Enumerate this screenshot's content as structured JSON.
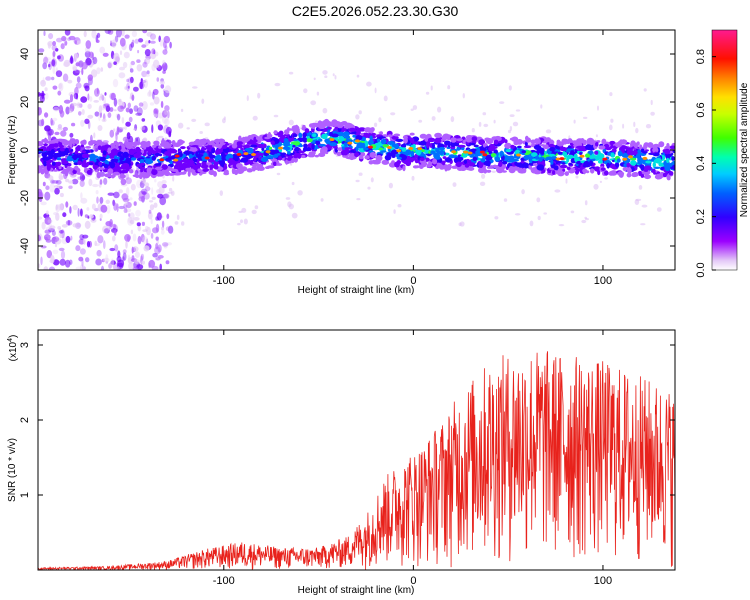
{
  "title": "C2E5.2026.052.23.30.G30",
  "chart_data": [
    {
      "type": "heatmap",
      "xlabel": "Height of straight line (km)",
      "ylabel": "Frequency (Hz)",
      "xlim": [
        -198,
        138
      ],
      "ylim": [
        -50,
        50
      ],
      "xticks": [
        -100,
        0,
        100
      ],
      "yticks": [
        -40,
        -20,
        0,
        20,
        40
      ],
      "colorbar": {
        "label": "Normalized spectral amplitude",
        "range": [
          0,
          0.9
        ],
        "ticks": [
          0.0,
          0.2,
          0.4,
          0.6,
          0.8
        ],
        "tick_labels": [
          "0.0",
          "0.2",
          "0.4",
          "0.6",
          "0.8"
        ]
      },
      "ridge": {
        "x": [
          -198,
          -180,
          -160,
          -140,
          -120,
          -100,
          -80,
          -65,
          -55,
          -45,
          -35,
          -25,
          -15,
          -5,
          0,
          20,
          40,
          60,
          80,
          100,
          120,
          138
        ],
        "y": [
          -2,
          -3,
          -4,
          -4,
          -3,
          -3,
          -1,
          2,
          4,
          5,
          4,
          2,
          1,
          -1,
          0,
          -1,
          -2,
          -2,
          -3,
          -3,
          -4,
          -5
        ]
      }
    },
    {
      "type": "line",
      "xlabel": "Height of straight line (km)",
      "ylabel": "SNR (10 * v/v)",
      "y_multiplier": "(x10",
      "y_multiplier_exp": "4",
      "y_multiplier_close": ")",
      "xlim": [
        -198,
        138
      ],
      "ylim": [
        0,
        3.2
      ],
      "xticks": [
        -100,
        0,
        100
      ],
      "yticks": [
        1,
        2,
        3
      ],
      "series": [
        {
          "color": "#e8221c",
          "envelope_x": [
            -198,
            -160,
            -130,
            -110,
            -90,
            -70,
            -50,
            -35,
            -25,
            -15,
            -5,
            5,
            15,
            25,
            40,
            60,
            80,
            100,
            120,
            138
          ],
          "envelope_y": [
            0.03,
            0.05,
            0.12,
            0.28,
            0.38,
            0.3,
            0.3,
            0.45,
            0.75,
            1.25,
            1.5,
            1.7,
            2.0,
            2.4,
            2.8,
            3.0,
            2.9,
            2.8,
            2.6,
            2.4
          ]
        }
      ]
    }
  ],
  "colors": {
    "line": "#e8221c",
    "axis": "#000000",
    "grid": "#000000"
  }
}
